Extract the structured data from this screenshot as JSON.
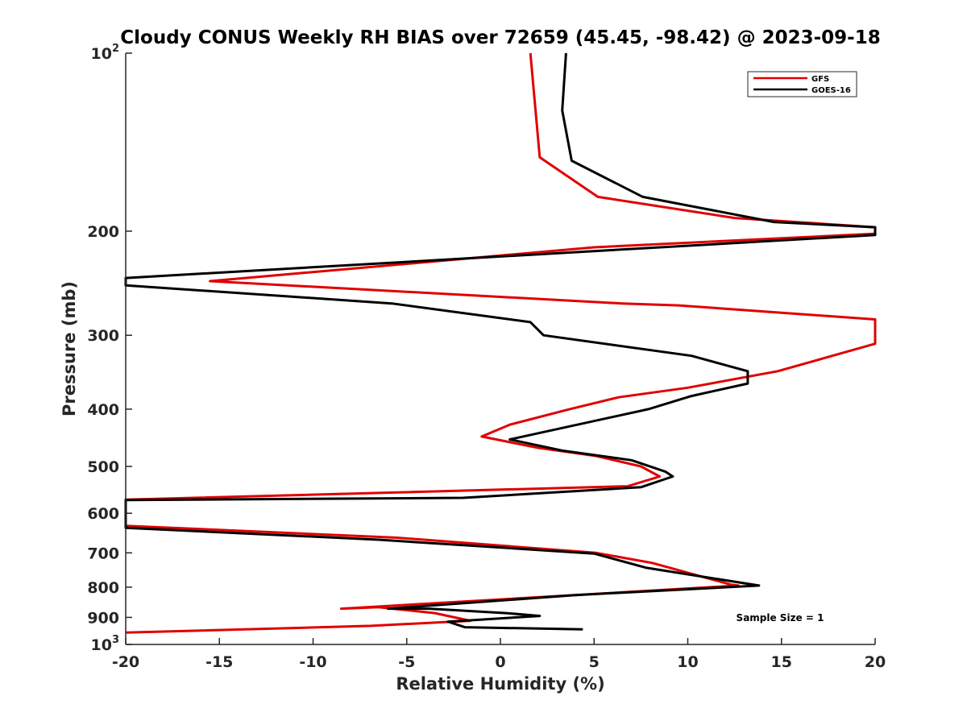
{
  "chart_data": {
    "type": "line",
    "title": "Cloudy CONUS Weekly RH BIAS over 72659 (45.45, -98.42) @ 2023-09-18",
    "xlabel": "Relative Humidity (%)",
    "ylabel": "Pressure (mb)",
    "xlim": [
      -20,
      20
    ],
    "ylim": [
      100,
      1000
    ],
    "y_scale": "log",
    "y_reversed": true,
    "grid": false,
    "legend_position": "top-right",
    "annotation": "Sample Size = 1",
    "x_ticks": [
      {
        "value": -20,
        "label": "-20"
      },
      {
        "value": -15,
        "label": "-15"
      },
      {
        "value": -10,
        "label": "-10"
      },
      {
        "value": -5,
        "label": "-5"
      },
      {
        "value": 0,
        "label": "0"
      },
      {
        "value": 5,
        "label": "5"
      },
      {
        "value": 10,
        "label": "10"
      },
      {
        "value": 15,
        "label": "15"
      },
      {
        "value": 20,
        "label": "20"
      }
    ],
    "y_ticks": [
      {
        "value": 100,
        "base": "10",
        "exp": "2"
      },
      {
        "value": 200,
        "base": "200",
        "exp": ""
      },
      {
        "value": 300,
        "base": "300",
        "exp": ""
      },
      {
        "value": 400,
        "base": "400",
        "exp": ""
      },
      {
        "value": 500,
        "base": "500",
        "exp": ""
      },
      {
        "value": 600,
        "base": "600",
        "exp": ""
      },
      {
        "value": 700,
        "base": "700",
        "exp": ""
      },
      {
        "value": 800,
        "base": "800",
        "exp": ""
      },
      {
        "value": 900,
        "base": "900",
        "exp": ""
      },
      {
        "value": 1000,
        "base": "10",
        "exp": "3"
      }
    ],
    "series": [
      {
        "name": "GFS",
        "color": "#e00000",
        "points": [
          [
            1.6,
            100
          ],
          [
            2.1,
            150
          ],
          [
            5.2,
            175
          ],
          [
            12.5,
            190
          ],
          [
            20,
            197
          ],
          [
            20,
            202
          ],
          [
            5,
            213
          ],
          [
            -15.5,
            243
          ],
          [
            6.5,
            265
          ],
          [
            9.5,
            267
          ],
          [
            20,
            282
          ],
          [
            20,
            310
          ],
          [
            14.8,
            345
          ],
          [
            10,
            368
          ],
          [
            6.3,
            382
          ],
          [
            3.7,
            400
          ],
          [
            0.5,
            425
          ],
          [
            -1,
            445
          ],
          [
            2,
            465
          ],
          [
            5.1,
            480
          ],
          [
            7.5,
            500
          ],
          [
            8.5,
            520
          ],
          [
            6.8,
            540
          ],
          [
            -20,
            569
          ],
          [
            -20,
            630
          ],
          [
            -5.5,
            660
          ],
          [
            5.1,
            700
          ],
          [
            8.1,
            728
          ],
          [
            12.3,
            792
          ],
          [
            12.7,
            795
          ],
          [
            -8.5,
            870
          ],
          [
            -6.5,
            865
          ],
          [
            -3.5,
            885
          ],
          [
            -1.6,
            912
          ],
          [
            -6.9,
            930
          ],
          [
            -20,
            955
          ]
        ]
      },
      {
        "name": "GOES-16",
        "color": "#000000",
        "points": [
          [
            3.5,
            100
          ],
          [
            3.3,
            125
          ],
          [
            3.8,
            152
          ],
          [
            7.6,
            175
          ],
          [
            14.6,
            193
          ],
          [
            20,
            197
          ],
          [
            20,
            203
          ],
          [
            -20,
            240
          ],
          [
            -20,
            247
          ],
          [
            -5.8,
            265
          ],
          [
            1.6,
            285
          ],
          [
            2.3,
            300
          ],
          [
            10.2,
            325
          ],
          [
            13.2,
            345
          ],
          [
            13.2,
            362
          ],
          [
            10.2,
            380
          ],
          [
            7.9,
            400
          ],
          [
            0.5,
            450
          ],
          [
            3.3,
            470
          ],
          [
            7,
            488
          ],
          [
            8.8,
            510
          ],
          [
            9.2,
            520
          ],
          [
            7.5,
            542
          ],
          [
            -2,
            565
          ],
          [
            -20,
            570
          ],
          [
            -20,
            635
          ],
          [
            -6.5,
            665
          ],
          [
            5,
            702
          ],
          [
            7.8,
            742
          ],
          [
            13.8,
            795
          ],
          [
            4,
            825
          ],
          [
            -6,
            870
          ],
          [
            -3.8,
            870
          ],
          [
            0.3,
            885
          ],
          [
            2.1,
            895
          ],
          [
            -2.8,
            915
          ],
          [
            -1.9,
            935
          ],
          [
            4.4,
            943
          ]
        ]
      }
    ]
  }
}
